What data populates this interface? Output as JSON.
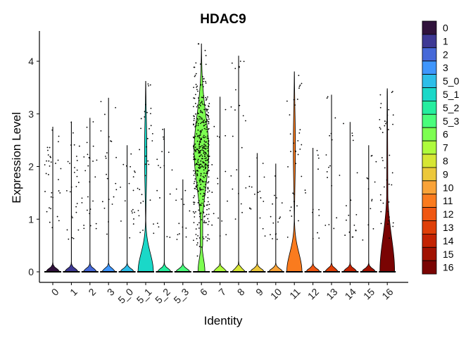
{
  "chart_data": {
    "type": "violin",
    "title": "HDAC9",
    "xlabel": "Identity",
    "ylabel": "Expression Level",
    "ylim": [
      -0.2,
      4.5
    ],
    "yticks": [
      0,
      1,
      2,
      3,
      4
    ],
    "grid": false,
    "legend_position": "right",
    "categories": [
      "0",
      "1",
      "2",
      "3",
      "5_0",
      "5_1",
      "5_2",
      "5_3",
      "6",
      "7",
      "8",
      "9",
      "10",
      "11",
      "12",
      "13",
      "14",
      "15",
      "16"
    ],
    "colors": [
      "#30123b",
      "#3e3994",
      "#4669d8",
      "#3f96fd",
      "#2dbee9",
      "#1ad8c8",
      "#25ee9f",
      "#4afd7c",
      "#7dfe51",
      "#aefb3c",
      "#d6e634",
      "#ecc83b",
      "#f9a338",
      "#fa7b1e",
      "#ef5712",
      "#df3f08",
      "#c32302",
      "#a11201",
      "#7a0403"
    ],
    "legend_labels": [
      "0",
      "1",
      "2",
      "3",
      "5_0",
      "5_1",
      "5_2",
      "5_3",
      "6",
      "7",
      "8",
      "9",
      "10",
      "11",
      "12",
      "13",
      "14",
      "15",
      "16"
    ],
    "series": [
      {
        "category": "0",
        "max": 2.75,
        "expressing_fraction": 0.55
      },
      {
        "category": "1",
        "max": 2.85,
        "expressing_fraction": 0.45
      },
      {
        "category": "2",
        "max": 2.92,
        "expressing_fraction": 0.4
      },
      {
        "category": "3",
        "max": 3.3,
        "expressing_fraction": 0.3
      },
      {
        "category": "5_0",
        "max": 2.4,
        "expressing_fraction": 0.25
      },
      {
        "category": "5_1",
        "max": 3.62,
        "expressing_fraction": 0.6
      },
      {
        "category": "5_2",
        "max": 2.72,
        "expressing_fraction": 0.2
      },
      {
        "category": "5_3",
        "max": 1.75,
        "expressing_fraction": 0.1
      },
      {
        "category": "6",
        "max": 4.33,
        "expressing_fraction": 0.95
      },
      {
        "category": "7",
        "max": 3.32,
        "expressing_fraction": 0.2
      },
      {
        "category": "8",
        "max": 4.1,
        "expressing_fraction": 0.3
      },
      {
        "category": "9",
        "max": 2.25,
        "expressing_fraction": 0.2
      },
      {
        "category": "10",
        "max": 2.05,
        "expressing_fraction": 0.15
      },
      {
        "category": "11",
        "max": 3.8,
        "expressing_fraction": 0.55
      },
      {
        "category": "12",
        "max": 2.35,
        "expressing_fraction": 0.1
      },
      {
        "category": "13",
        "max": 3.36,
        "expressing_fraction": 0.2
      },
      {
        "category": "14",
        "max": 2.84,
        "expressing_fraction": 0.2
      },
      {
        "category": "15",
        "max": 2.4,
        "expressing_fraction": 0.1
      },
      {
        "category": "16",
        "max": 3.48,
        "expressing_fraction": 0.7
      }
    ]
  }
}
